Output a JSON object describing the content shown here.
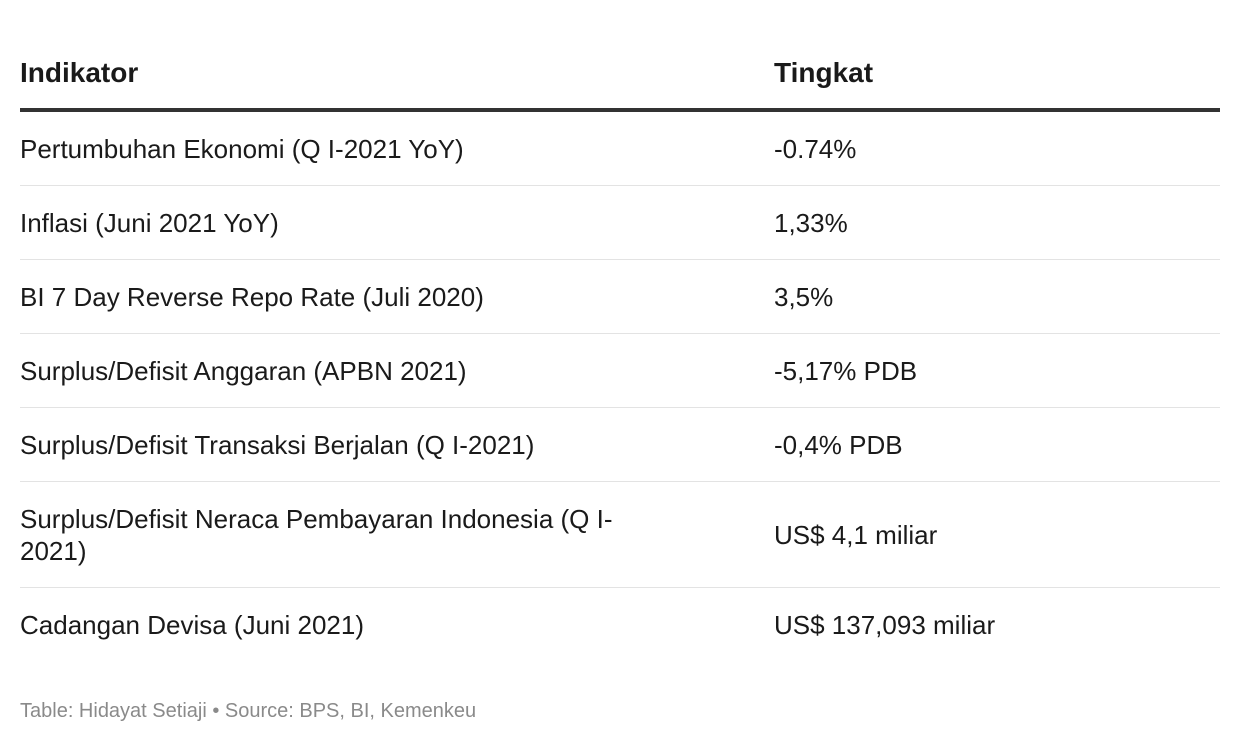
{
  "chart_data": {
    "type": "table",
    "columns": [
      "Indikator",
      "Tingkat"
    ],
    "rows": [
      {
        "indicator": "Pertumbuhan Ekonomi (Q I-2021 YoY)",
        "value": "-0.74%"
      },
      {
        "indicator": "Inflasi (Juni 2021 YoY)",
        "value": "1,33%"
      },
      {
        "indicator": "BI 7 Day Reverse Repo Rate (Juli 2020)",
        "value": "3,5%"
      },
      {
        "indicator": "Surplus/Defisit Anggaran (APBN 2021)",
        "value": "-5,17% PDB"
      },
      {
        "indicator": "Surplus/Defisit Transaksi Berjalan (Q I-2021)",
        "value": "-0,4% PDB"
      },
      {
        "indicator": "Surplus/Defisit Neraca Pembayaran Indonesia (Q I-2021)",
        "value": "US$ 4,1 miliar"
      },
      {
        "indicator": "Cadangan Devisa (Juni 2021)",
        "value": "US$ 137,093 miliar"
      }
    ]
  },
  "footer": {
    "credit": "Table: Hidayat Setiaji • Source: BPS, BI, Kemenkeu"
  }
}
